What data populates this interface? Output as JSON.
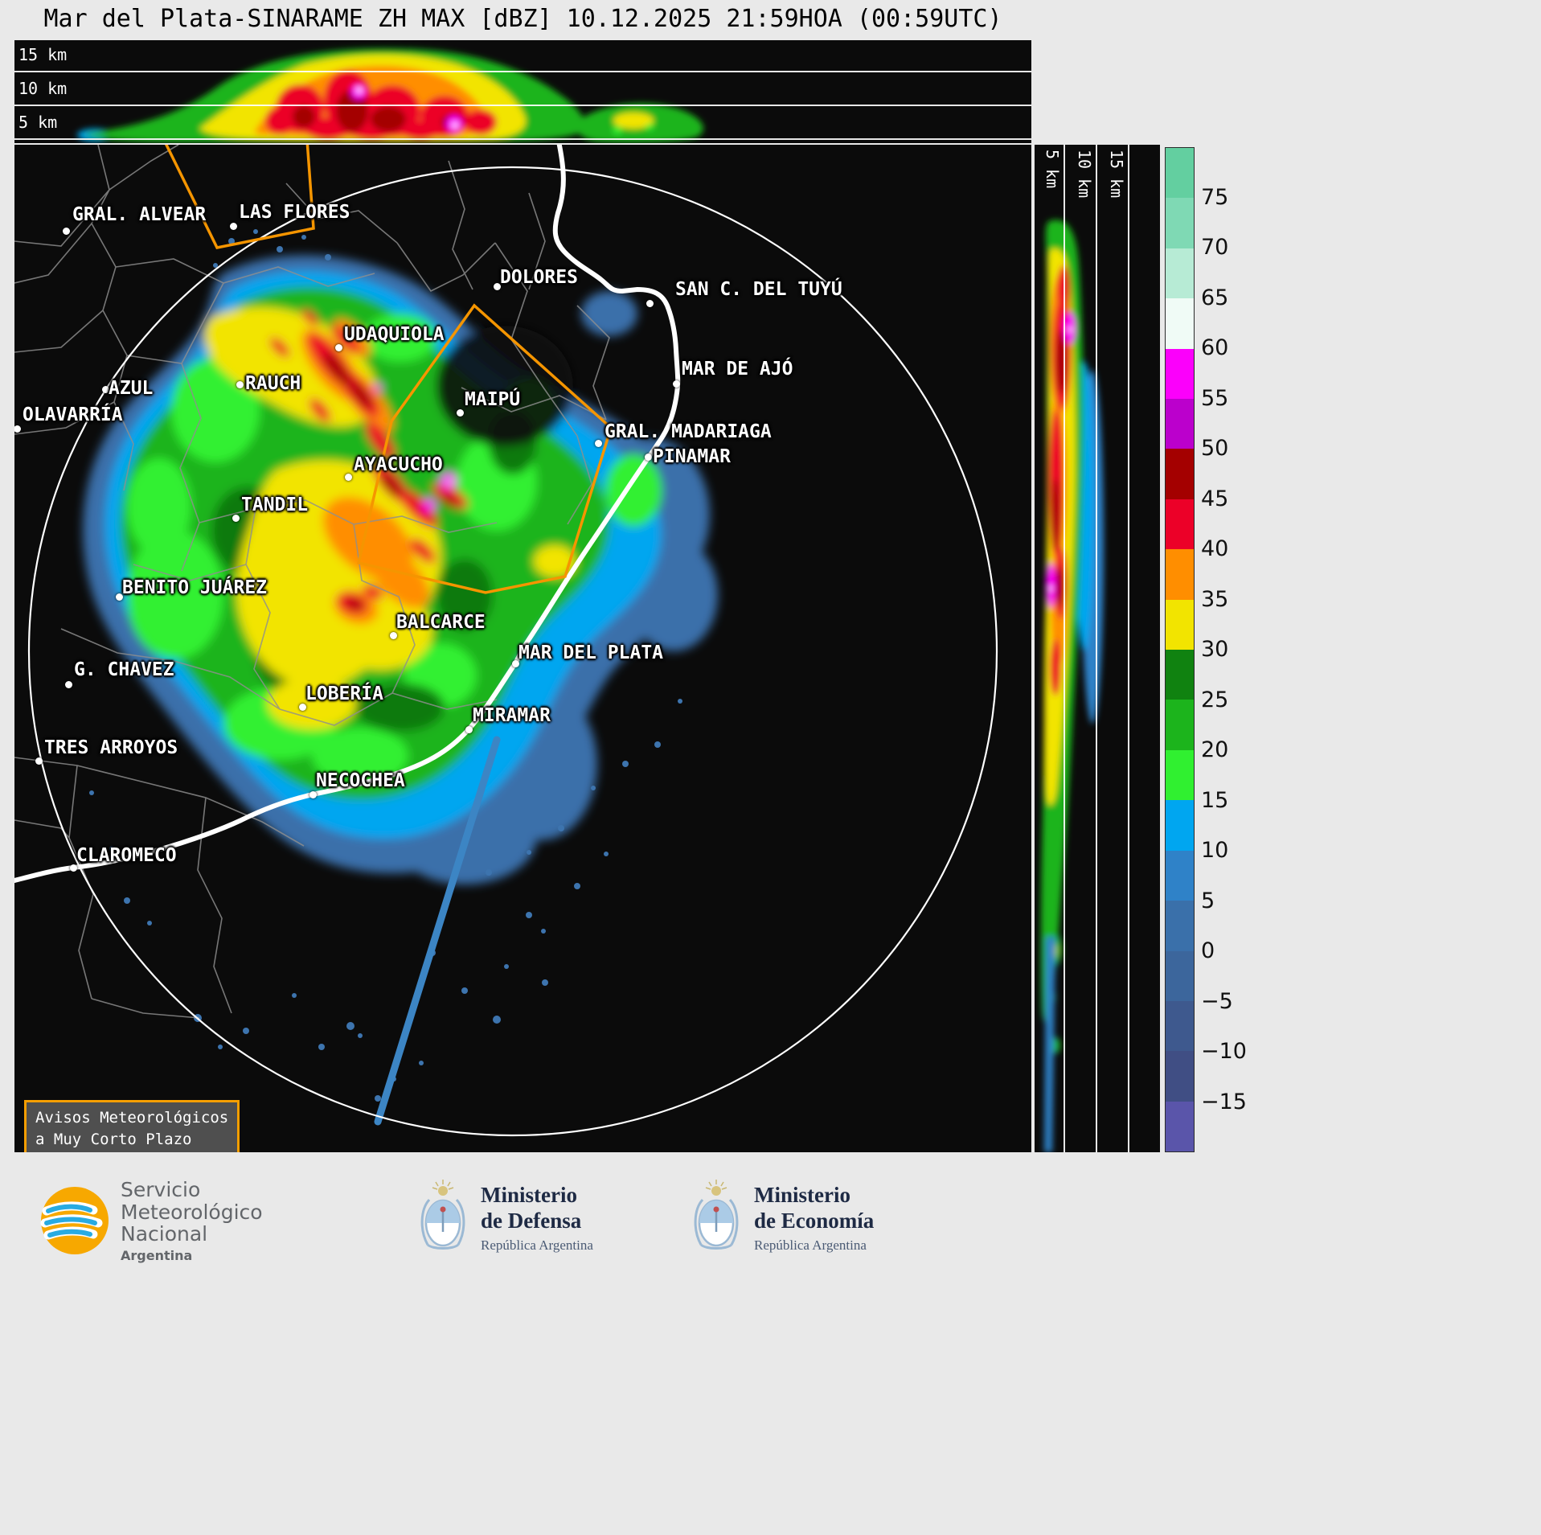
{
  "title": "Mar del Plata-SINARAME ZH MAX [dBZ] 10.12.2025 21:59HOA (00:59UTC)",
  "top_profile": {
    "altitude_labels": [
      "15 km",
      "10 km",
      "5 km"
    ]
  },
  "right_profile": {
    "altitude_labels": [
      "5 km",
      "10 km",
      "15 km"
    ]
  },
  "colorbar": {
    "unit": "dBZ",
    "ticks": [
      "75",
      "70",
      "65",
      "60",
      "55",
      "50",
      "45",
      "40",
      "35",
      "30",
      "25",
      "20",
      "15",
      "10",
      "5",
      "0",
      "−5",
      "−10",
      "−15"
    ],
    "colors": [
      "#63cfa0",
      "#7fd9b4",
      "#b7ebd5",
      "#f0fbf6",
      "#fb00fb",
      "#bb00cc",
      "#a40000",
      "#ec0028",
      "#ff8e00",
      "#f2e400",
      "#108210",
      "#1cb41c",
      "#30f030",
      "#00a6f0",
      "#2f82c8",
      "#3a70aa",
      "#3c669c",
      "#3e598e",
      "#404e84",
      "#5a55aa"
    ]
  },
  "map": {
    "warning_box": {
      "lines": [
        "Avisos Meteorológicos",
        "a Muy Corto Plazo"
      ]
    },
    "cities": [
      {
        "name": "GRAL. ALVEAR",
        "dot": [
          64,
          107
        ],
        "label": [
          72,
          74
        ]
      },
      {
        "name": "LAS FLORES",
        "dot": [
          272,
          101
        ],
        "label": [
          279,
          71
        ]
      },
      {
        "name": "DOLORES",
        "dot": [
          600,
          176
        ],
        "label": [
          604,
          152
        ]
      },
      {
        "name": "SAN C. DEL TUYÚ",
        "dot": [
          790,
          197
        ],
        "label": [
          822,
          167
        ]
      },
      {
        "name": "UDAQUIOLA",
        "dot": [
          403,
          252
        ],
        "label": [
          410,
          223
        ]
      },
      {
        "name": "RAUCH",
        "dot": [
          280,
          298
        ],
        "label": [
          287,
          284
        ]
      },
      {
        "name": "MAR DE AJÓ",
        "dot": [
          823,
          297
        ],
        "label": [
          830,
          266
        ]
      },
      {
        "name": "AZUL",
        "dot": [
          113,
          304
        ],
        "label": [
          117,
          290
        ]
      },
      {
        "name": "OLAVARRÍA",
        "dot": [
          3,
          353
        ],
        "label": [
          10,
          323
        ]
      },
      {
        "name": "MAIPÚ",
        "dot": [
          554,
          333
        ],
        "label": [
          560,
          304
        ]
      },
      {
        "name": "GRAL. MADARIAGA",
        "dot": [
          726,
          371
        ],
        "label": [
          734,
          344
        ]
      },
      {
        "name": "PINAMAR",
        "dot": [
          788,
          388
        ],
        "label": [
          794,
          375
        ]
      },
      {
        "name": "AYACUCHO",
        "dot": [
          415,
          413
        ],
        "label": [
          422,
          385
        ]
      },
      {
        "name": "TANDIL",
        "dot": [
          275,
          464
        ],
        "label": [
          282,
          435
        ]
      },
      {
        "name": "BENITO JUÁREZ",
        "dot": [
          130,
          562
        ],
        "label": [
          134,
          538
        ]
      },
      {
        "name": "BALCARCE",
        "dot": [
          471,
          610
        ],
        "label": [
          475,
          581
        ]
      },
      {
        "name": "MAR DEL PLATA",
        "dot": [
          623,
          645
        ],
        "label": [
          627,
          619
        ]
      },
      {
        "name": "G. CHAVEZ",
        "dot": [
          67,
          671
        ],
        "label": [
          74,
          640
        ]
      },
      {
        "name": "LOBERÍA",
        "dot": [
          358,
          699
        ],
        "label": [
          362,
          670
        ]
      },
      {
        "name": "MIRAMAR",
        "dot": [
          565,
          727
        ],
        "label": [
          570,
          697
        ]
      },
      {
        "name": "TRES ARROYOS",
        "dot": [
          30,
          766
        ],
        "label": [
          37,
          737
        ]
      },
      {
        "name": "NECOCHEA",
        "dot": [
          371,
          808
        ],
        "label": [
          375,
          778
        ]
      },
      {
        "name": "CLAROMECO",
        "dot": [
          73,
          899
        ],
        "label": [
          77,
          871
        ]
      }
    ]
  },
  "footer": {
    "smn": {
      "org_lines": [
        "Servicio",
        "Meteorológico",
        "Nacional"
      ],
      "country": "Argentina"
    },
    "ministries": [
      {
        "title_lines": [
          "Ministerio",
          "de Defensa"
        ],
        "subtitle": "República Argentina"
      },
      {
        "title_lines": [
          "Ministerio",
          "de Economía"
        ],
        "subtitle": "República Argentina"
      }
    ]
  }
}
